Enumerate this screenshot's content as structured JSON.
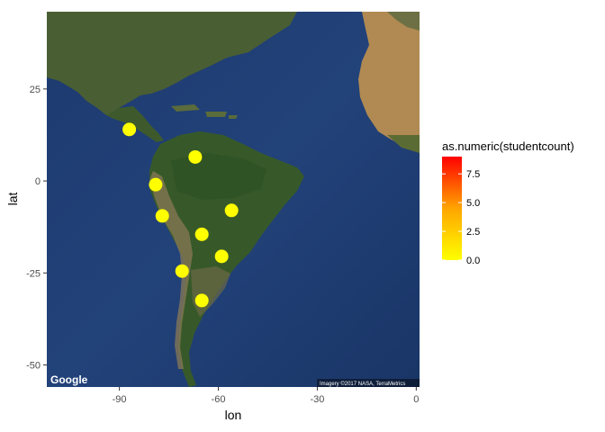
{
  "chart_data": {
    "type": "scatter",
    "basemap": "satellite",
    "xlabel": "lon",
    "ylabel": "lat",
    "xlim": [
      -112,
      1
    ],
    "ylim": [
      -56,
      46
    ],
    "x_ticks": [
      -90,
      -60,
      -30,
      0
    ],
    "x_tick_labels": [
      "-90",
      "-60",
      "-30",
      "0"
    ],
    "y_ticks": [
      25,
      0,
      -25,
      -50
    ],
    "y_tick_labels": [
      "25",
      "0",
      "-25",
      "-50"
    ],
    "points": [
      {
        "lon": -87,
        "lat": 14,
        "value": 0
      },
      {
        "lon": -67,
        "lat": 6.5,
        "value": 0
      },
      {
        "lon": -79,
        "lat": -1,
        "value": 0
      },
      {
        "lon": -56,
        "lat": -8,
        "value": 0
      },
      {
        "lon": -77,
        "lat": -9.5,
        "value": 0
      },
      {
        "lon": -65,
        "lat": -14.5,
        "value": 0
      },
      {
        "lon": -59,
        "lat": -20.5,
        "value": 0
      },
      {
        "lon": -71,
        "lat": -24.5,
        "value": 0
      },
      {
        "lon": -65,
        "lat": -32.5,
        "value": 0
      }
    ],
    "legend": {
      "title": "as.numeric(studentcount)",
      "labels": [
        "7.5",
        "5.0",
        "2.5",
        "0.0"
      ],
      "breaks": [
        7.5,
        5.0,
        2.5,
        0.0
      ],
      "range": [
        0,
        9
      ],
      "low_color": "#ffff00",
      "high_color": "#ff0000",
      "placement": "right"
    },
    "map_credit": "Google",
    "attribution": "Imagery ©2017 NASA, TerraMetrics"
  }
}
